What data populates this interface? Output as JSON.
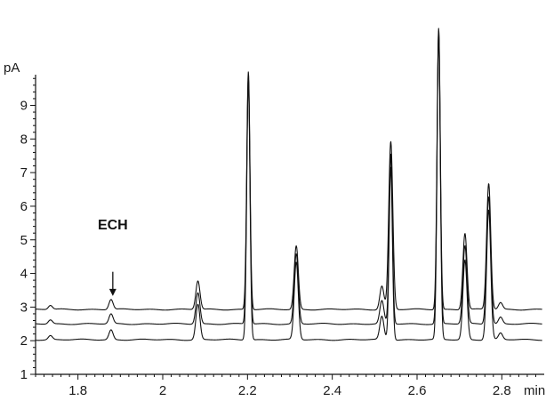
{
  "chart_data": {
    "type": "line",
    "title": "",
    "xlabel": "min",
    "ylabel": "pA",
    "xlim": [
      1.7,
      2.9
    ],
    "ylim": [
      1,
      10.5
    ],
    "grid": false,
    "legend": "none",
    "x_ticks": [
      1.8,
      2.0,
      2.2,
      2.4,
      2.6,
      2.8
    ],
    "x_tick_labels": [
      "1.8",
      "2",
      "2.2",
      "2.4",
      "2.6",
      "2.8"
    ],
    "y_ticks": [
      1,
      2,
      3,
      4,
      5,
      6,
      7,
      8,
      9
    ],
    "y_tick_labels": [
      "1",
      "2",
      "3",
      "4",
      "5",
      "6",
      "7",
      "8",
      "9"
    ],
    "series": [
      {
        "baseline": 2.93,
        "peaks": [
          [
            1.735,
            3.05
          ],
          [
            1.878,
            3.23
          ],
          [
            2.083,
            3.78
          ],
          [
            2.202,
            10.0
          ],
          [
            2.315,
            4.82
          ],
          [
            2.517,
            3.63
          ],
          [
            2.538,
            7.92
          ],
          [
            2.651,
            11.3
          ],
          [
            2.713,
            5.2
          ],
          [
            2.769,
            6.68
          ],
          [
            2.797,
            3.13
          ]
        ]
      },
      {
        "baseline": 2.5,
        "peaks": [
          [
            1.735,
            2.62
          ],
          [
            1.878,
            2.79
          ],
          [
            2.083,
            3.43
          ],
          [
            2.202,
            9.85
          ],
          [
            2.315,
            4.58
          ],
          [
            2.517,
            3.18
          ],
          [
            2.538,
            7.55
          ],
          [
            2.651,
            11.2
          ],
          [
            2.713,
            4.82
          ],
          [
            2.769,
            6.3
          ],
          [
            2.797,
            2.7
          ]
        ]
      },
      {
        "baseline": 2.03,
        "peaks": [
          [
            1.735,
            2.15
          ],
          [
            1.878,
            2.32
          ],
          [
            2.083,
            3.08
          ],
          [
            2.202,
            9.7
          ],
          [
            2.315,
            4.33
          ],
          [
            2.517,
            2.72
          ],
          [
            2.538,
            7.18
          ],
          [
            2.651,
            11.1
          ],
          [
            2.713,
            4.4
          ],
          [
            2.769,
            5.9
          ],
          [
            2.797,
            2.22
          ]
        ]
      }
    ],
    "annotation": {
      "text": "ECH",
      "x": 1.878,
      "arrow_from_y": 4.05,
      "arrow_to_y": 3.33
    },
    "line_color": "#111111"
  }
}
